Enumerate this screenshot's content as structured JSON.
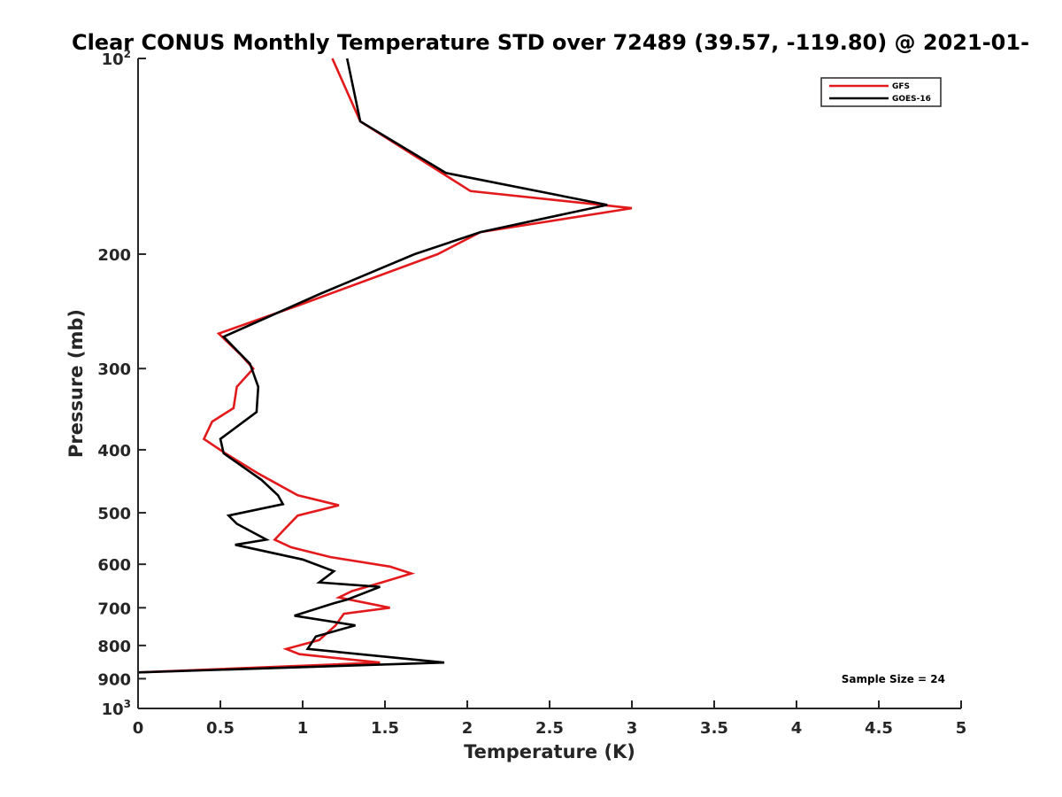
{
  "chart_data": {
    "type": "line",
    "title": "Clear CONUS Monthly Temperature STD over 72489 (39.57, -119.80) @ 2021-01-",
    "xlabel": "Temperature (K)",
    "ylabel": "Pressure (mb)",
    "xlim": [
      0,
      5
    ],
    "ylim": [
      100,
      1000
    ],
    "yscale": "log",
    "yreversed": true,
    "grid": false,
    "legend_position": "top-right",
    "x_ticks": [
      "0",
      "0.5",
      "1",
      "1.5",
      "2",
      "2.5",
      "3",
      "3.5",
      "4",
      "4.5",
      "5"
    ],
    "y_ticks": [
      {
        "value": 100,
        "base": "10",
        "exp": "2",
        "label": ""
      },
      {
        "value": 200,
        "label": "200"
      },
      {
        "value": 300,
        "label": "300"
      },
      {
        "value": 400,
        "label": "400"
      },
      {
        "value": 500,
        "label": "500"
      },
      {
        "value": 600,
        "label": "600"
      },
      {
        "value": 700,
        "label": "700"
      },
      {
        "value": 800,
        "label": "800"
      },
      {
        "value": 900,
        "label": "900"
      },
      {
        "value": 1000,
        "base": "10",
        "exp": "3",
        "label": ""
      }
    ],
    "series": [
      {
        "name": "GFS",
        "color": "#e31a1c",
        "points": [
          [
            1.18,
            100
          ],
          [
            1.35,
            125
          ],
          [
            2.02,
            160
          ],
          [
            3.0,
            170
          ],
          [
            2.08,
            185
          ],
          [
            1.82,
            200
          ],
          [
            0.97,
            240
          ],
          [
            0.49,
            265
          ],
          [
            0.62,
            285
          ],
          [
            0.7,
            300
          ],
          [
            0.6,
            320
          ],
          [
            0.58,
            345
          ],
          [
            0.45,
            362
          ],
          [
            0.4,
            385
          ],
          [
            0.53,
            405
          ],
          [
            0.73,
            435
          ],
          [
            0.97,
            470
          ],
          [
            1.22,
            487
          ],
          [
            0.97,
            505
          ],
          [
            0.89,
            530
          ],
          [
            0.83,
            550
          ],
          [
            0.93,
            565
          ],
          [
            1.17,
            585
          ],
          [
            1.53,
            605
          ],
          [
            1.66,
            620
          ],
          [
            1.48,
            640
          ],
          [
            1.3,
            660
          ],
          [
            1.22,
            675
          ],
          [
            1.53,
            700
          ],
          [
            1.25,
            715
          ],
          [
            1.2,
            745
          ],
          [
            1.1,
            785
          ],
          [
            0.9,
            810
          ],
          [
            0.98,
            825
          ],
          [
            1.47,
            850
          ],
          [
            0.0,
            880
          ]
        ]
      },
      {
        "name": "GOES-16",
        "color": "#000000",
        "points": [
          [
            1.27,
            100
          ],
          [
            1.35,
            125
          ],
          [
            1.87,
            150
          ],
          [
            2.85,
            168
          ],
          [
            2.08,
            185
          ],
          [
            1.68,
            200
          ],
          [
            1.11,
            230
          ],
          [
            0.52,
            268
          ],
          [
            0.68,
            295
          ],
          [
            0.73,
            320
          ],
          [
            0.72,
            350
          ],
          [
            0.5,
            385
          ],
          [
            0.52,
            405
          ],
          [
            0.75,
            445
          ],
          [
            0.85,
            470
          ],
          [
            0.88,
            485
          ],
          [
            0.55,
            505
          ],
          [
            0.6,
            520
          ],
          [
            0.78,
            550
          ],
          [
            0.59,
            560
          ],
          [
            1.0,
            590
          ],
          [
            1.19,
            615
          ],
          [
            1.1,
            640
          ],
          [
            1.47,
            650
          ],
          [
            1.27,
            680
          ],
          [
            1.18,
            690
          ],
          [
            0.95,
            720
          ],
          [
            1.32,
            745
          ],
          [
            1.08,
            775
          ],
          [
            1.03,
            810
          ],
          [
            1.86,
            850
          ],
          [
            0.0,
            880
          ]
        ]
      }
    ],
    "annotation": "Sample Size = 24"
  }
}
